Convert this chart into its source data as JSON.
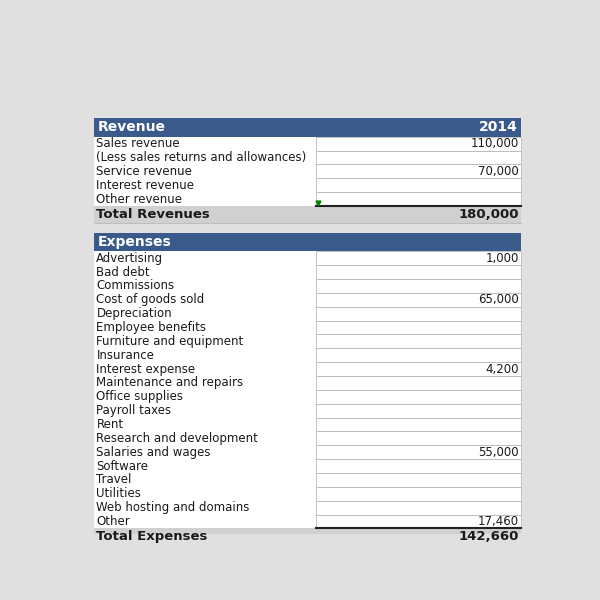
{
  "background_color": "#e0e0e0",
  "table_bg": "#ffffff",
  "header_color": "#3a5a8c",
  "header_text_color": "#ffffff",
  "total_row_bg": "#d0d0d0",
  "font_size": 8.5,
  "revenue_header": "Revenue",
  "revenue_year": "2014",
  "revenue_rows": [
    {
      "label": "Sales revenue",
      "value": "110,000"
    },
    {
      "label": "(Less sales returns and allowances)",
      "value": ""
    },
    {
      "label": "Service revenue",
      "value": "70,000"
    },
    {
      "label": "Interest revenue",
      "value": ""
    },
    {
      "label": "Other revenue",
      "value": ""
    }
  ],
  "revenue_total_label": "Total Revenues",
  "revenue_total_value": "180,000",
  "expenses_header": "Expenses",
  "expenses_rows": [
    {
      "label": "Advertising",
      "value": "1,000"
    },
    {
      "label": "Bad debt",
      "value": ""
    },
    {
      "label": "Commissions",
      "value": ""
    },
    {
      "label": "Cost of goods sold",
      "value": "65,000"
    },
    {
      "label": "Depreciation",
      "value": ""
    },
    {
      "label": "Employee benefits",
      "value": ""
    },
    {
      "label": "Furniture and equipment",
      "value": ""
    },
    {
      "label": "Insurance",
      "value": ""
    },
    {
      "label": "Interest expense",
      "value": "4,200"
    },
    {
      "label": "Maintenance and repairs",
      "value": ""
    },
    {
      "label": "Office supplies",
      "value": ""
    },
    {
      "label": "Payroll taxes",
      "value": ""
    },
    {
      "label": "Rent",
      "value": ""
    },
    {
      "label": "Research and development",
      "value": ""
    },
    {
      "label": "Salaries and wages",
      "value": "55,000"
    },
    {
      "label": "Software",
      "value": ""
    },
    {
      "label": "Travel",
      "value": ""
    },
    {
      "label": "Utilities",
      "value": ""
    },
    {
      "label": "Web hosting and domains",
      "value": ""
    },
    {
      "label": "Other",
      "value": "17,460"
    }
  ],
  "expenses_total_label": "Total Expenses",
  "expenses_total_value": "142,660",
  "line_color": "#b0b0b0",
  "dark_line_color": "#222222",
  "green_marker_color": "#008000"
}
